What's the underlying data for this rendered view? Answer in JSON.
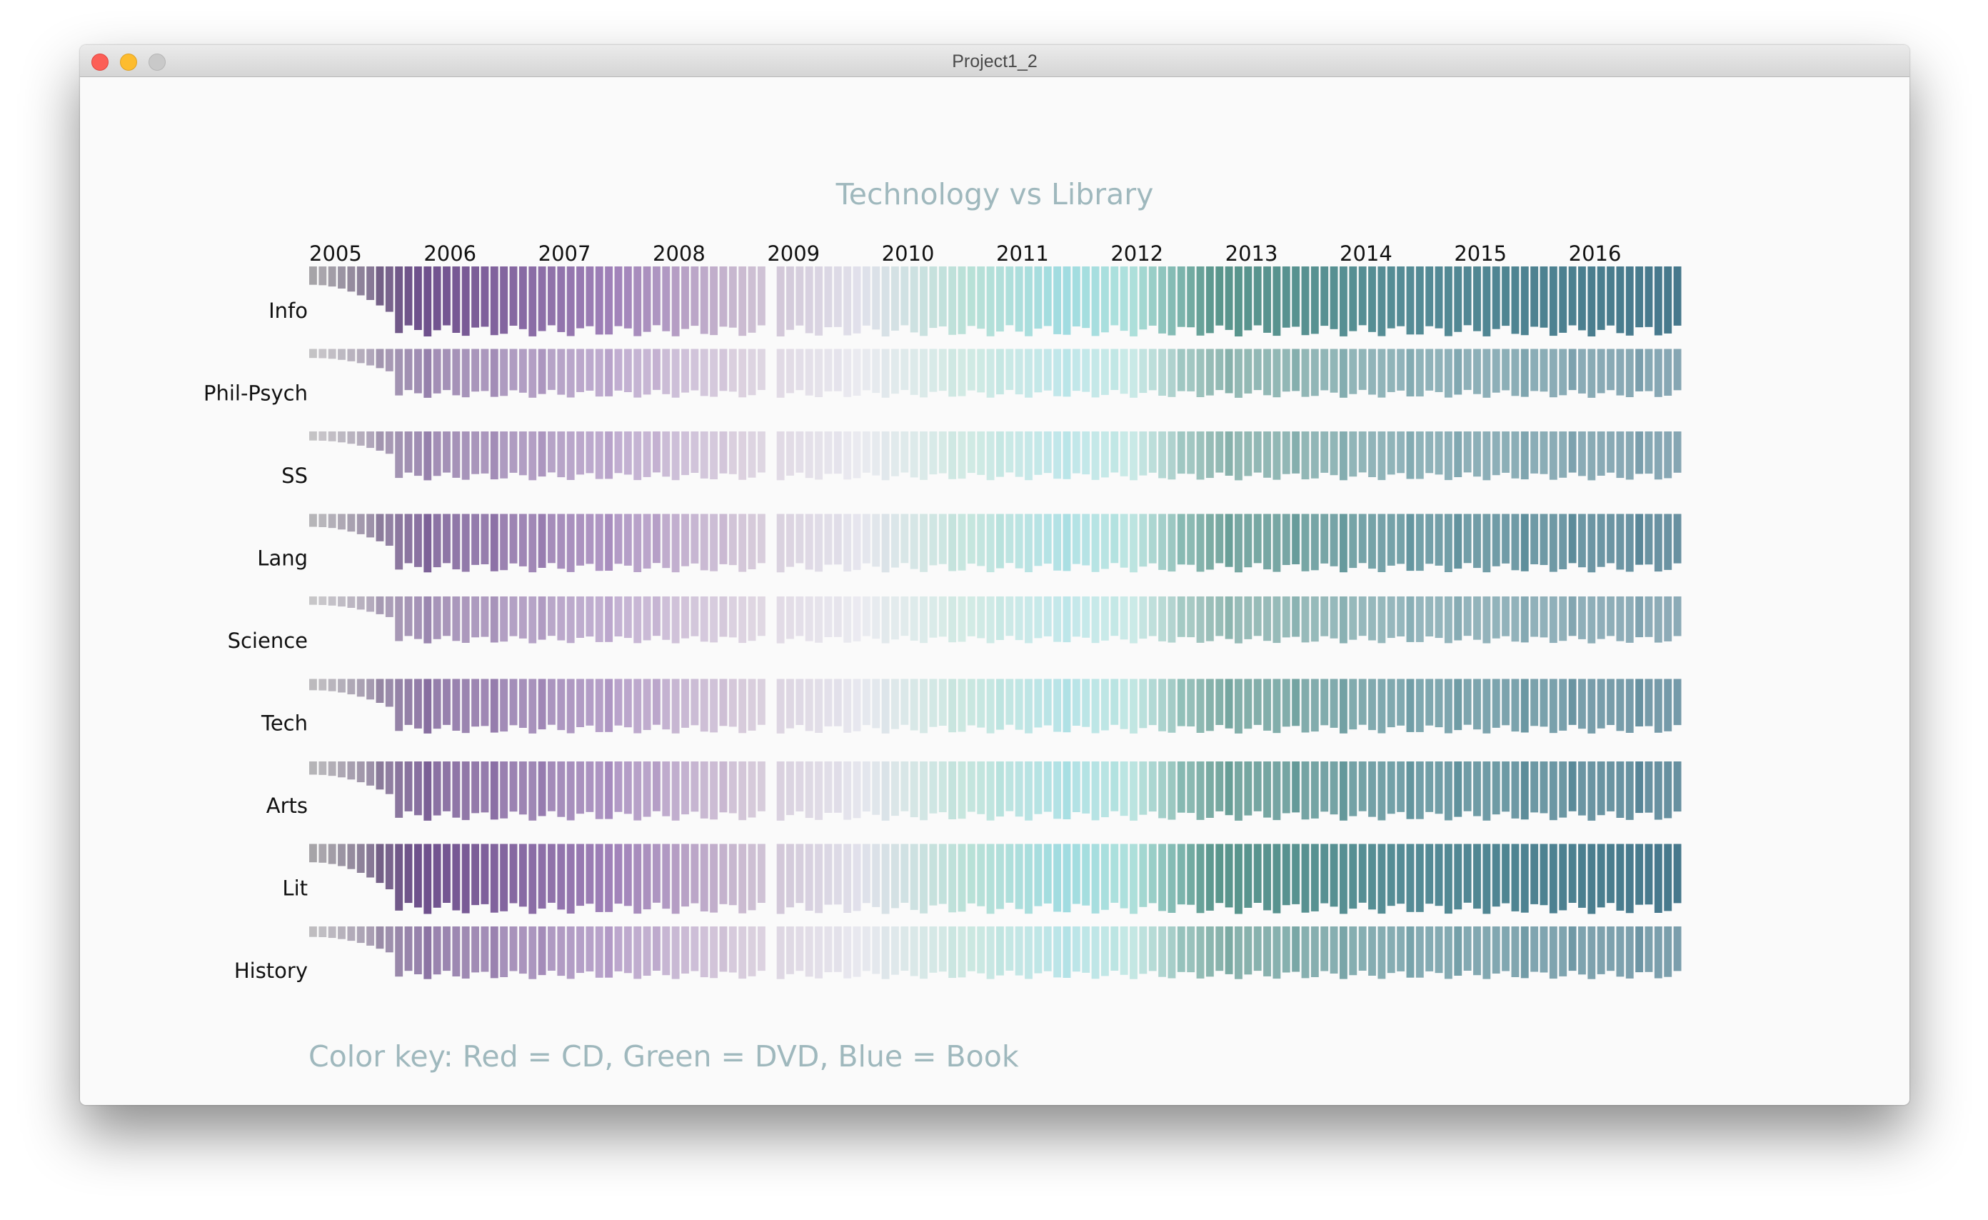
{
  "window": {
    "title": "Project1_2"
  },
  "chart_data": {
    "type": "heatmap",
    "title": "Technology vs Library",
    "x": [
      "2005",
      "2006",
      "2007",
      "2008",
      "2009",
      "2010",
      "2011",
      "2012",
      "2013",
      "2014",
      "2015",
      "2016"
    ],
    "y": [
      "Info",
      "Phil-Psych",
      "SS",
      "Lang",
      "Science",
      "Tech",
      "Arts",
      "Lit",
      "History"
    ],
    "row_strength": [
      1.0,
      0.45,
      0.45,
      0.7,
      0.4,
      0.6,
      0.72,
      1.0,
      0.55
    ],
    "key": "Color key: Red = CD, Green = DVD, Blue = Book"
  }
}
